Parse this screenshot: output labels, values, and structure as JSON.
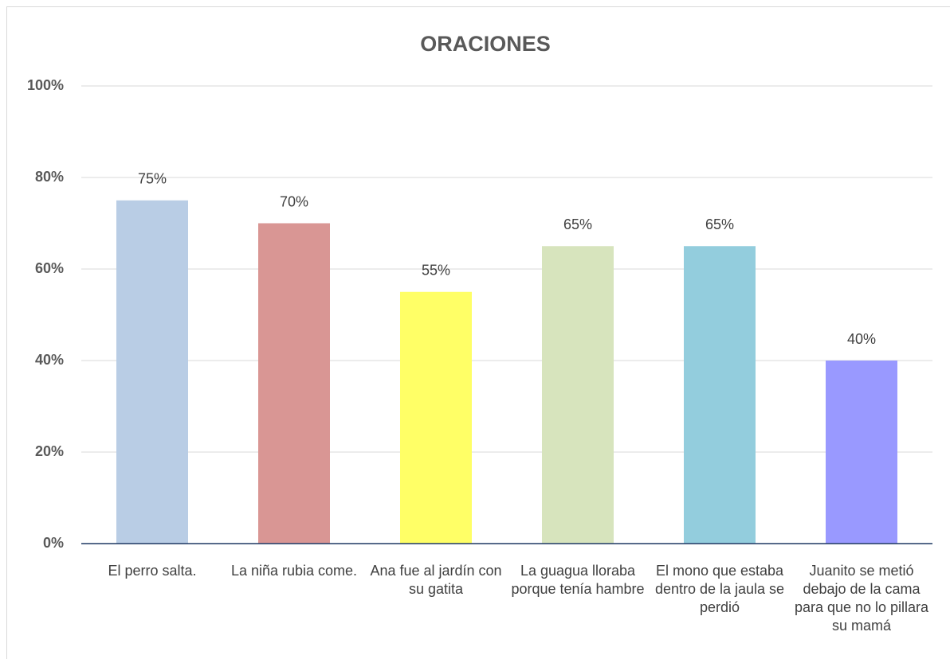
{
  "chart_data": {
    "type": "bar",
    "title": "ORACIONES",
    "categories": [
      "El perro salta.",
      "La niña rubia come.",
      "Ana fue al jardín con su gatita",
      "La guagua lloraba porque tenía hambre",
      "El mono que estaba dentro de la jaula se perdió",
      "Juanito se metió debajo de la cama para que no lo pillara su mamá"
    ],
    "values": [
      75,
      70,
      55,
      65,
      65,
      40
    ],
    "value_labels": [
      "75%",
      "70%",
      "55%",
      "65%",
      "65%",
      "40%"
    ],
    "colors": [
      "#b9cde5",
      "#d99694",
      "#ffff66",
      "#d7e4bd",
      "#93cddd",
      "#9999ff"
    ],
    "ylim": [
      0,
      100
    ],
    "yticks": [
      {
        "value": 0,
        "label": "0%"
      },
      {
        "value": 20,
        "label": "20%"
      },
      {
        "value": 40,
        "label": "40%"
      },
      {
        "value": 60,
        "label": "60%"
      },
      {
        "value": 80,
        "label": "80%"
      },
      {
        "value": 100,
        "label": "100%"
      }
    ],
    "grid": true
  }
}
